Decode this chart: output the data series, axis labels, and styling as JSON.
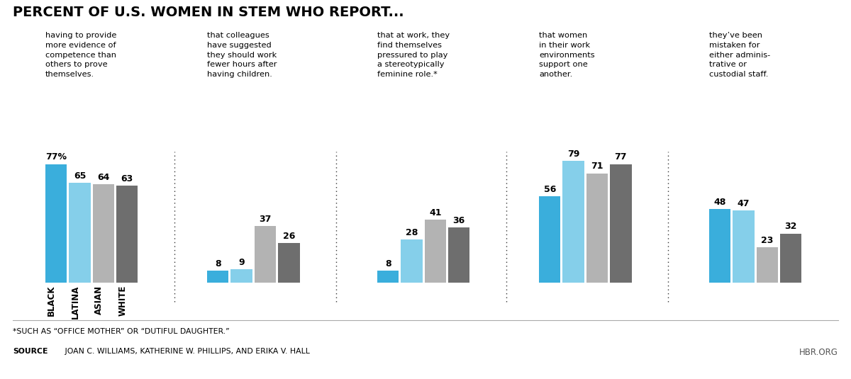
{
  "title": "PERCENT OF U.S. WOMEN IN STEM WHO REPORT...",
  "categories": [
    "having to provide\nmore evidence of\ncompetence than\nothers to prove\nthemselves.",
    "that colleagues\nhave suggested\nthey should work\nfewer hours after\nhaving children.",
    "that at work, they\nfind themselves\npressured to play\na stereotypically\nfeminine role.*",
    "that women\nin their work\nenvironments\nsupport one\nanother.",
    "they’ve been\nmistaken for\neither adminis-\ntrative or\ncustodial staff."
  ],
  "groups": [
    "BLACK",
    "LATINA",
    "ASIAN",
    "WHITE"
  ],
  "values": [
    [
      77,
      65,
      64,
      63
    ],
    [
      8,
      9,
      37,
      26
    ],
    [
      8,
      28,
      41,
      36
    ],
    [
      56,
      79,
      71,
      77
    ],
    [
      48,
      47,
      23,
      32
    ]
  ],
  "colors": [
    "#3aaedc",
    "#85cfea",
    "#b3b3b3",
    "#6e6e6e"
  ],
  "footnote": "*SUCH AS “OFFICE MOTHER” OR “DUTIFUL DAUGHTER.”",
  "source_bold": "SOURCE",
  "source_normal": " JOAN C. WILLIAMS, KATHERINE W. PHILLIPS, AND ERIKA V. HALL",
  "hbr": "HBR.ORG",
  "background_color": "#ffffff"
}
